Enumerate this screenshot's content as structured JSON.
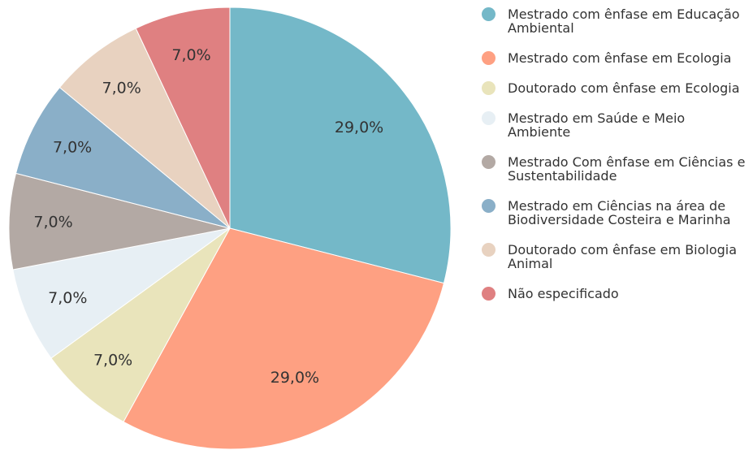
{
  "chart_data": {
    "type": "pie",
    "categories": [
      "Mestrado com ênfase em Educação Ambiental",
      "Mestrado com ênfase em Ecologia",
      "Doutorado com ênfase em Ecologia",
      "Mestrado em Saúde e Meio Ambiente",
      "Mestrado Com ênfase em Ciências e Sustentabilidade",
      "Mestrado em Ciências na área de Biodiversidade Costeira e Marinha",
      "Doutorado com ênfase em Biologia Animal",
      "Não especificado"
    ],
    "values": [
      29,
      29,
      7,
      7,
      7,
      7,
      7,
      7
    ],
    "value_labels": [
      "29,0%",
      "29,0%",
      "7,0%",
      "7,0%",
      "7,0%",
      "7,0%",
      "7,0%",
      "7,0%"
    ],
    "colors": [
      "#74b8c8",
      "#fea082",
      "#e9e4bb",
      "#e7eff4",
      "#b3a9a4",
      "#8aafc8",
      "#e8d2c0",
      "#df8081"
    ],
    "legend": "right"
  }
}
